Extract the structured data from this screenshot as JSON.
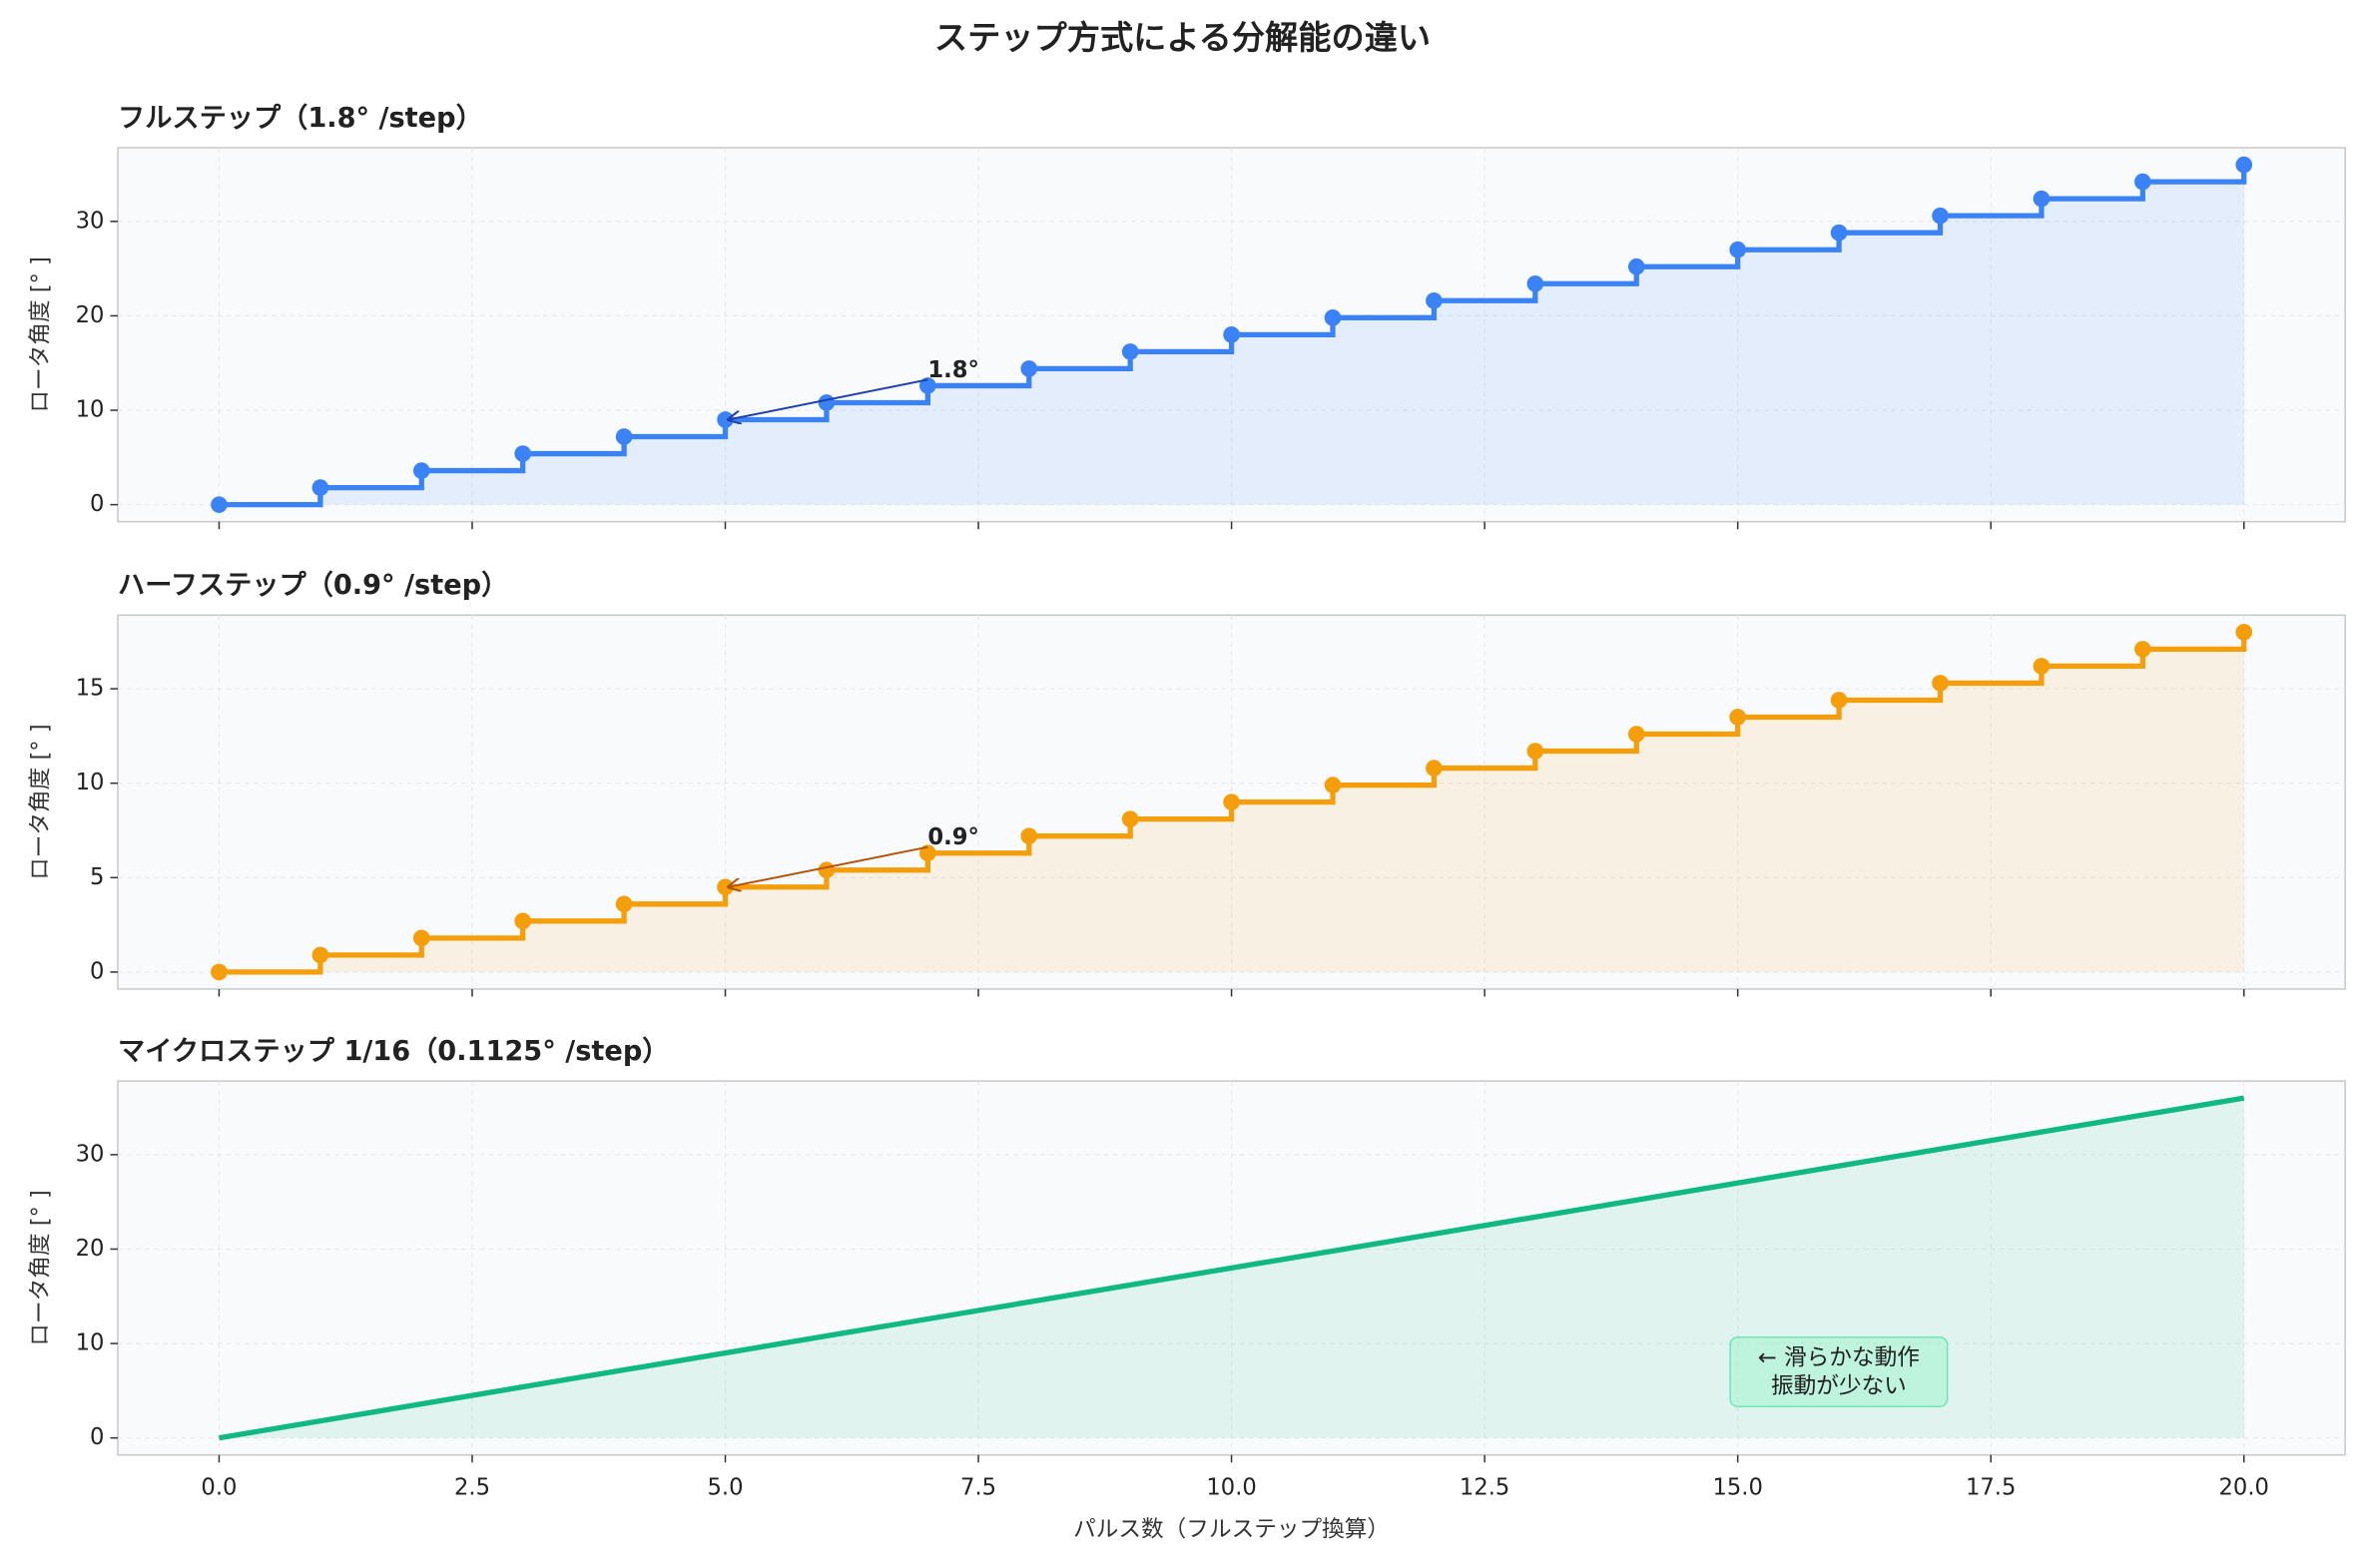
{
  "title": "ステップ方式による分解能の違い",
  "chart_data": [
    {
      "type": "step",
      "title": "フルステップ（1.8° /step）",
      "title_color": "#1e40af",
      "ylabel": "ロータ角度 [° ]",
      "annotation": "1.8°",
      "x": [
        0,
        1,
        2,
        3,
        4,
        5,
        6,
        7,
        8,
        9,
        10,
        11,
        12,
        13,
        14,
        15,
        16,
        17,
        18,
        19,
        20
      ],
      "values": [
        0,
        1.8,
        3.6,
        5.4,
        7.2,
        9,
        10.8,
        12.6,
        14.4,
        16.2,
        18,
        19.8,
        21.6,
        23.4,
        25.2,
        27,
        28.8,
        30.6,
        32.4,
        34.2,
        36
      ],
      "color": "#3b82f6",
      "xlim": [
        -1,
        21
      ],
      "ylim": [
        -1.8,
        37.8
      ],
      "xticks": [
        0,
        2.5,
        5,
        7.5,
        10,
        12.5,
        15,
        17.5,
        20
      ],
      "yticks": [
        0,
        10,
        20,
        30
      ],
      "grid": true
    },
    {
      "type": "step",
      "title": "ハーフステップ（0.9° /step）",
      "title_color": "#b45309",
      "ylabel": "ロータ角度 [° ]",
      "annotation": "0.9°",
      "x": [
        0,
        1,
        2,
        3,
        4,
        5,
        6,
        7,
        8,
        9,
        10,
        11,
        12,
        13,
        14,
        15,
        16,
        17,
        18,
        19,
        20
      ],
      "values": [
        0,
        0.9,
        1.8,
        2.7,
        3.6,
        4.5,
        5.4,
        6.3,
        7.2,
        8.1,
        9,
        9.9,
        10.8,
        11.7,
        12.6,
        13.5,
        14.4,
        15.3,
        16.2,
        17.1,
        18
      ],
      "color": "#f59e0b",
      "xlim": [
        -1,
        21
      ],
      "ylim": [
        -0.9,
        18.9
      ],
      "xticks": [
        0,
        2.5,
        5,
        7.5,
        10,
        12.5,
        15,
        17.5,
        20
      ],
      "yticks": [
        0,
        5,
        10,
        15
      ],
      "grid": true
    },
    {
      "type": "line",
      "title": "マイクロステップ 1/16（0.1125° /step）",
      "title_color": "#065f46",
      "ylabel": "ロータ角度 [° ]",
      "xlabel": "パルス数（フルステップ換算）",
      "note": [
        "← 滑らかな動作",
        "振動が少ない"
      ],
      "x": [
        0,
        20
      ],
      "values": [
        0,
        36
      ],
      "color": "#10b981",
      "xlim": [
        -1,
        21
      ],
      "ylim": [
        -1.8,
        37.8
      ],
      "xticks": [
        {
          "value": 0,
          "label": "0.0"
        },
        {
          "value": 2.5,
          "label": "2.5"
        },
        {
          "value": 5,
          "label": "5.0"
        },
        {
          "value": 7.5,
          "label": "7.5"
        },
        {
          "value": 10,
          "label": "10.0"
        },
        {
          "value": 12.5,
          "label": "12.5"
        },
        {
          "value": 15,
          "label": "15.0"
        },
        {
          "value": 17.5,
          "label": "17.5"
        },
        {
          "value": 20,
          "label": "20.0"
        }
      ],
      "yticks": [
        0,
        10,
        20,
        30
      ],
      "grid": true
    }
  ]
}
